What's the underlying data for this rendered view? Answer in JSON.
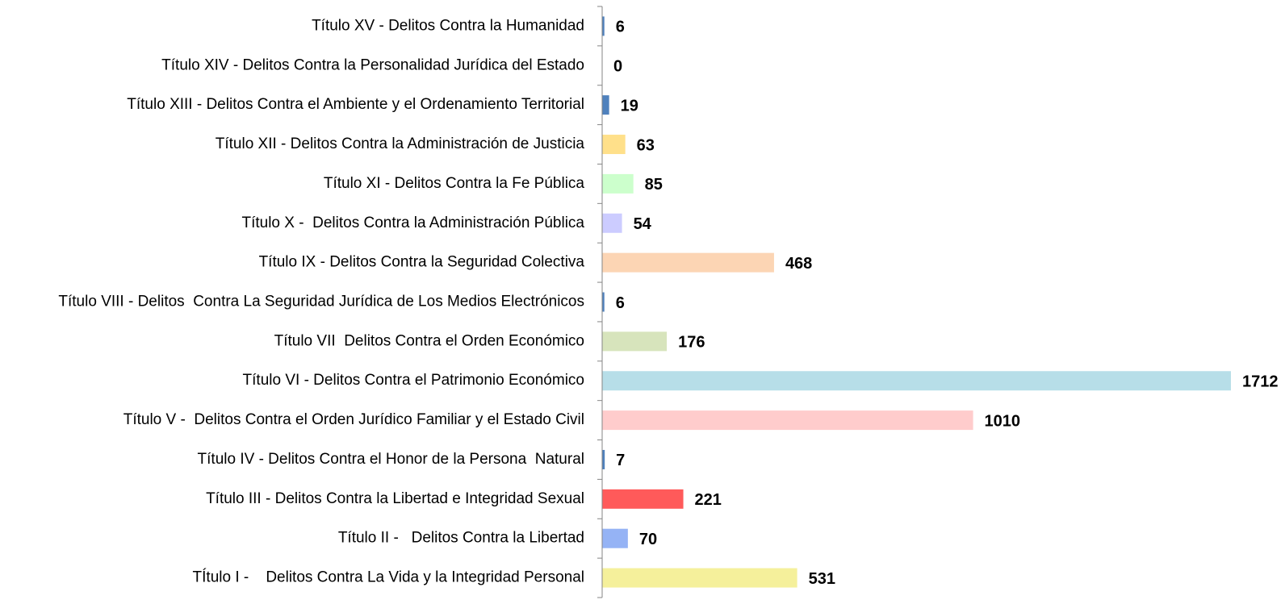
{
  "chart_data": {
    "type": "barh",
    "categories": [
      "Título XV - Delitos Contra la Humanidad",
      "Título XIV - Delitos Contra la Personalidad Jurídica del Estado",
      "Título XIII - Delitos Contra el Ambiente y el Ordenamiento Territorial",
      "Título XII - Delitos Contra la Administración de Justicia",
      "Título XI - Delitos Contra la Fe Pública",
      "Título X -  Delitos Contra la Administración Pública",
      "Título IX - Delitos Contra la Seguridad Colectiva",
      "Título VIII - Delitos  Contra La Seguridad Jurídica de Los Medios Electrónicos",
      "Título VII  Delitos Contra el Orden Económico",
      "Título VI - Delitos Contra el Patrimonio Económico",
      "Título V -  Delitos Contra el Orden Jurídico Familiar y el Estado Civil",
      "Título IV - Delitos Contra el Honor de la Persona  Natural",
      "Título III - Delitos Contra la Libertad e Integridad Sexual",
      "Título II -   Delitos Contra la Libertad",
      "TÍtulo I -    Delitos Contra La Vida y la Integridad Personal"
    ],
    "values": [
      6,
      0,
      19,
      63,
      85,
      54,
      468,
      6,
      176,
      1712,
      1010,
      7,
      221,
      70,
      531
    ],
    "colors": [
      "#4f81bd",
      "#4f81bd",
      "#4f81bd",
      "#ffe08a",
      "#ccffcc",
      "#ccccff",
      "#fcd5b4",
      "#4f81bd",
      "#d7e4bc",
      "#b7dee8",
      "#ffcccc",
      "#4f81bd",
      "#ff5a5a",
      "#95b3f5",
      "#f5f09b"
    ],
    "xlim": [
      0,
      1800
    ]
  }
}
